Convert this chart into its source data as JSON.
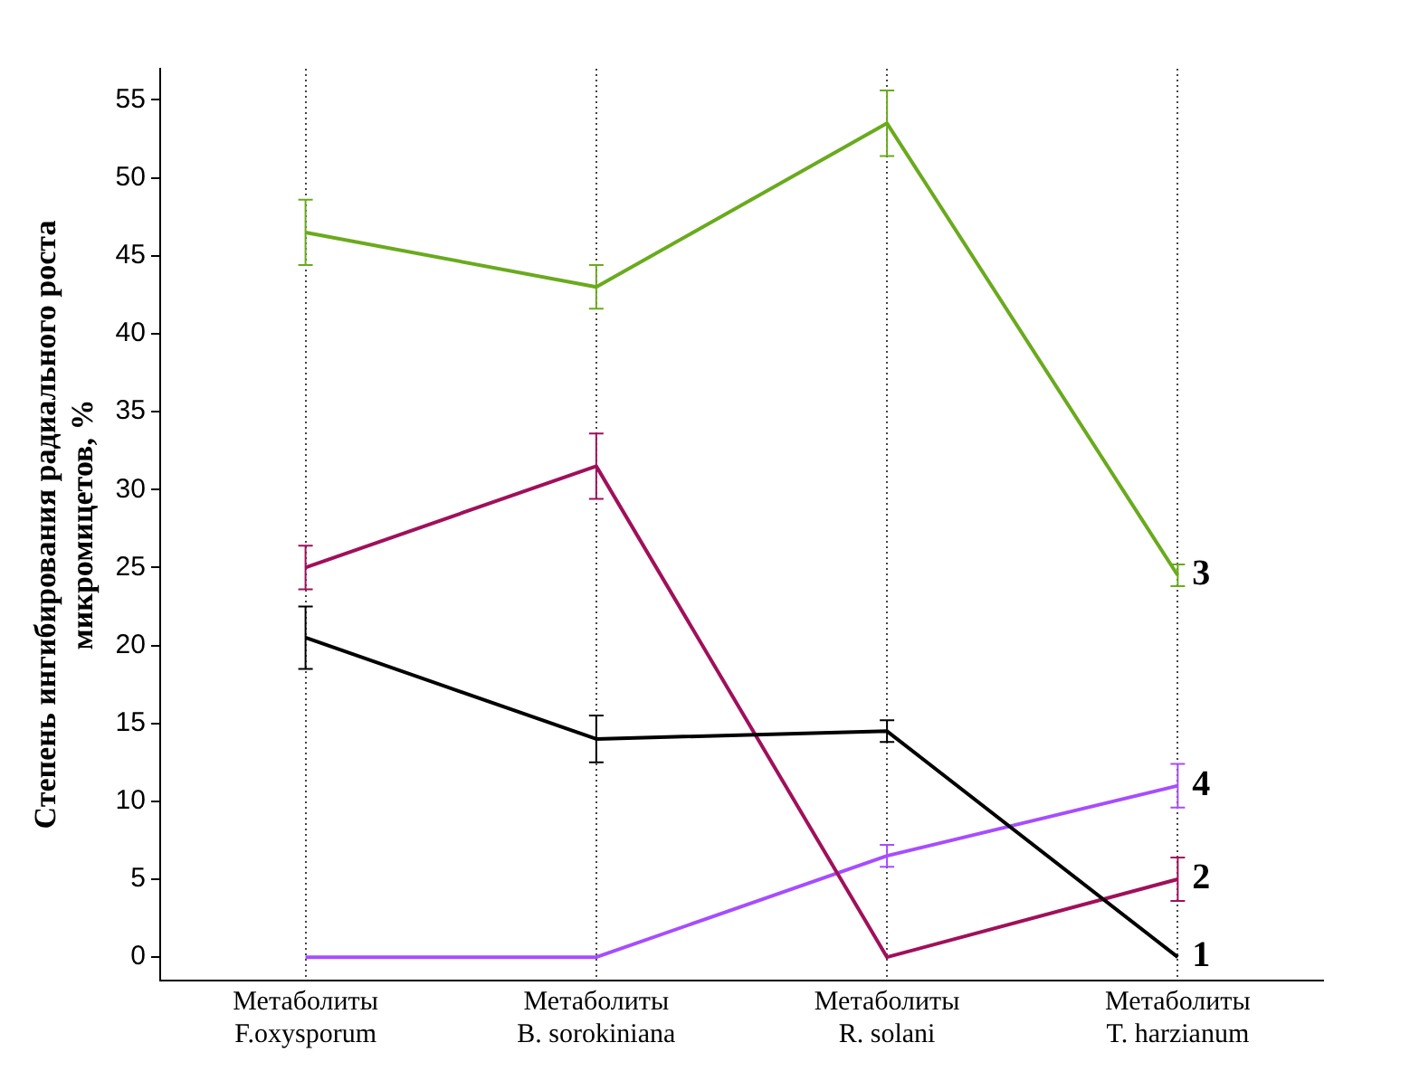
{
  "chart_data": {
    "type": "line",
    "ylabel": "Степень ингибирования радиального роста\nмикромицетов, %",
    "categories": [
      "Метаболиты\nF.oxysporum",
      "Метаболиты\nB. sorokiniana",
      "Метаболиты\nR. solani",
      "Метаболиты\nT. harzianum"
    ],
    "series": [
      {
        "name": "1",
        "color": "#000000",
        "values": [
          20.5,
          14,
          14.5,
          0
        ],
        "errors": [
          2,
          1.5,
          0.7,
          null
        ]
      },
      {
        "name": "2",
        "color": "#a0105a",
        "values": [
          25,
          31.5,
          0,
          5
        ],
        "errors": [
          1.4,
          2.1,
          null,
          1.4
        ]
      },
      {
        "name": "3",
        "color": "#6aaa1e",
        "values": [
          46.5,
          43,
          53.5,
          24.5
        ],
        "errors": [
          2.1,
          1.4,
          2.1,
          0.7
        ]
      },
      {
        "name": "4",
        "color": "#a64dff",
        "values": [
          0,
          0,
          6.5,
          11
        ],
        "errors": [
          null,
          null,
          0.7,
          1.4
        ]
      }
    ],
    "ylim": [
      -1.5,
      57
    ],
    "yticks": [
      0,
      5,
      10,
      15,
      20,
      25,
      30,
      35,
      40,
      45,
      50,
      55
    ],
    "grid": "x",
    "legend": false,
    "marker": "none",
    "line_style": "solid"
  }
}
